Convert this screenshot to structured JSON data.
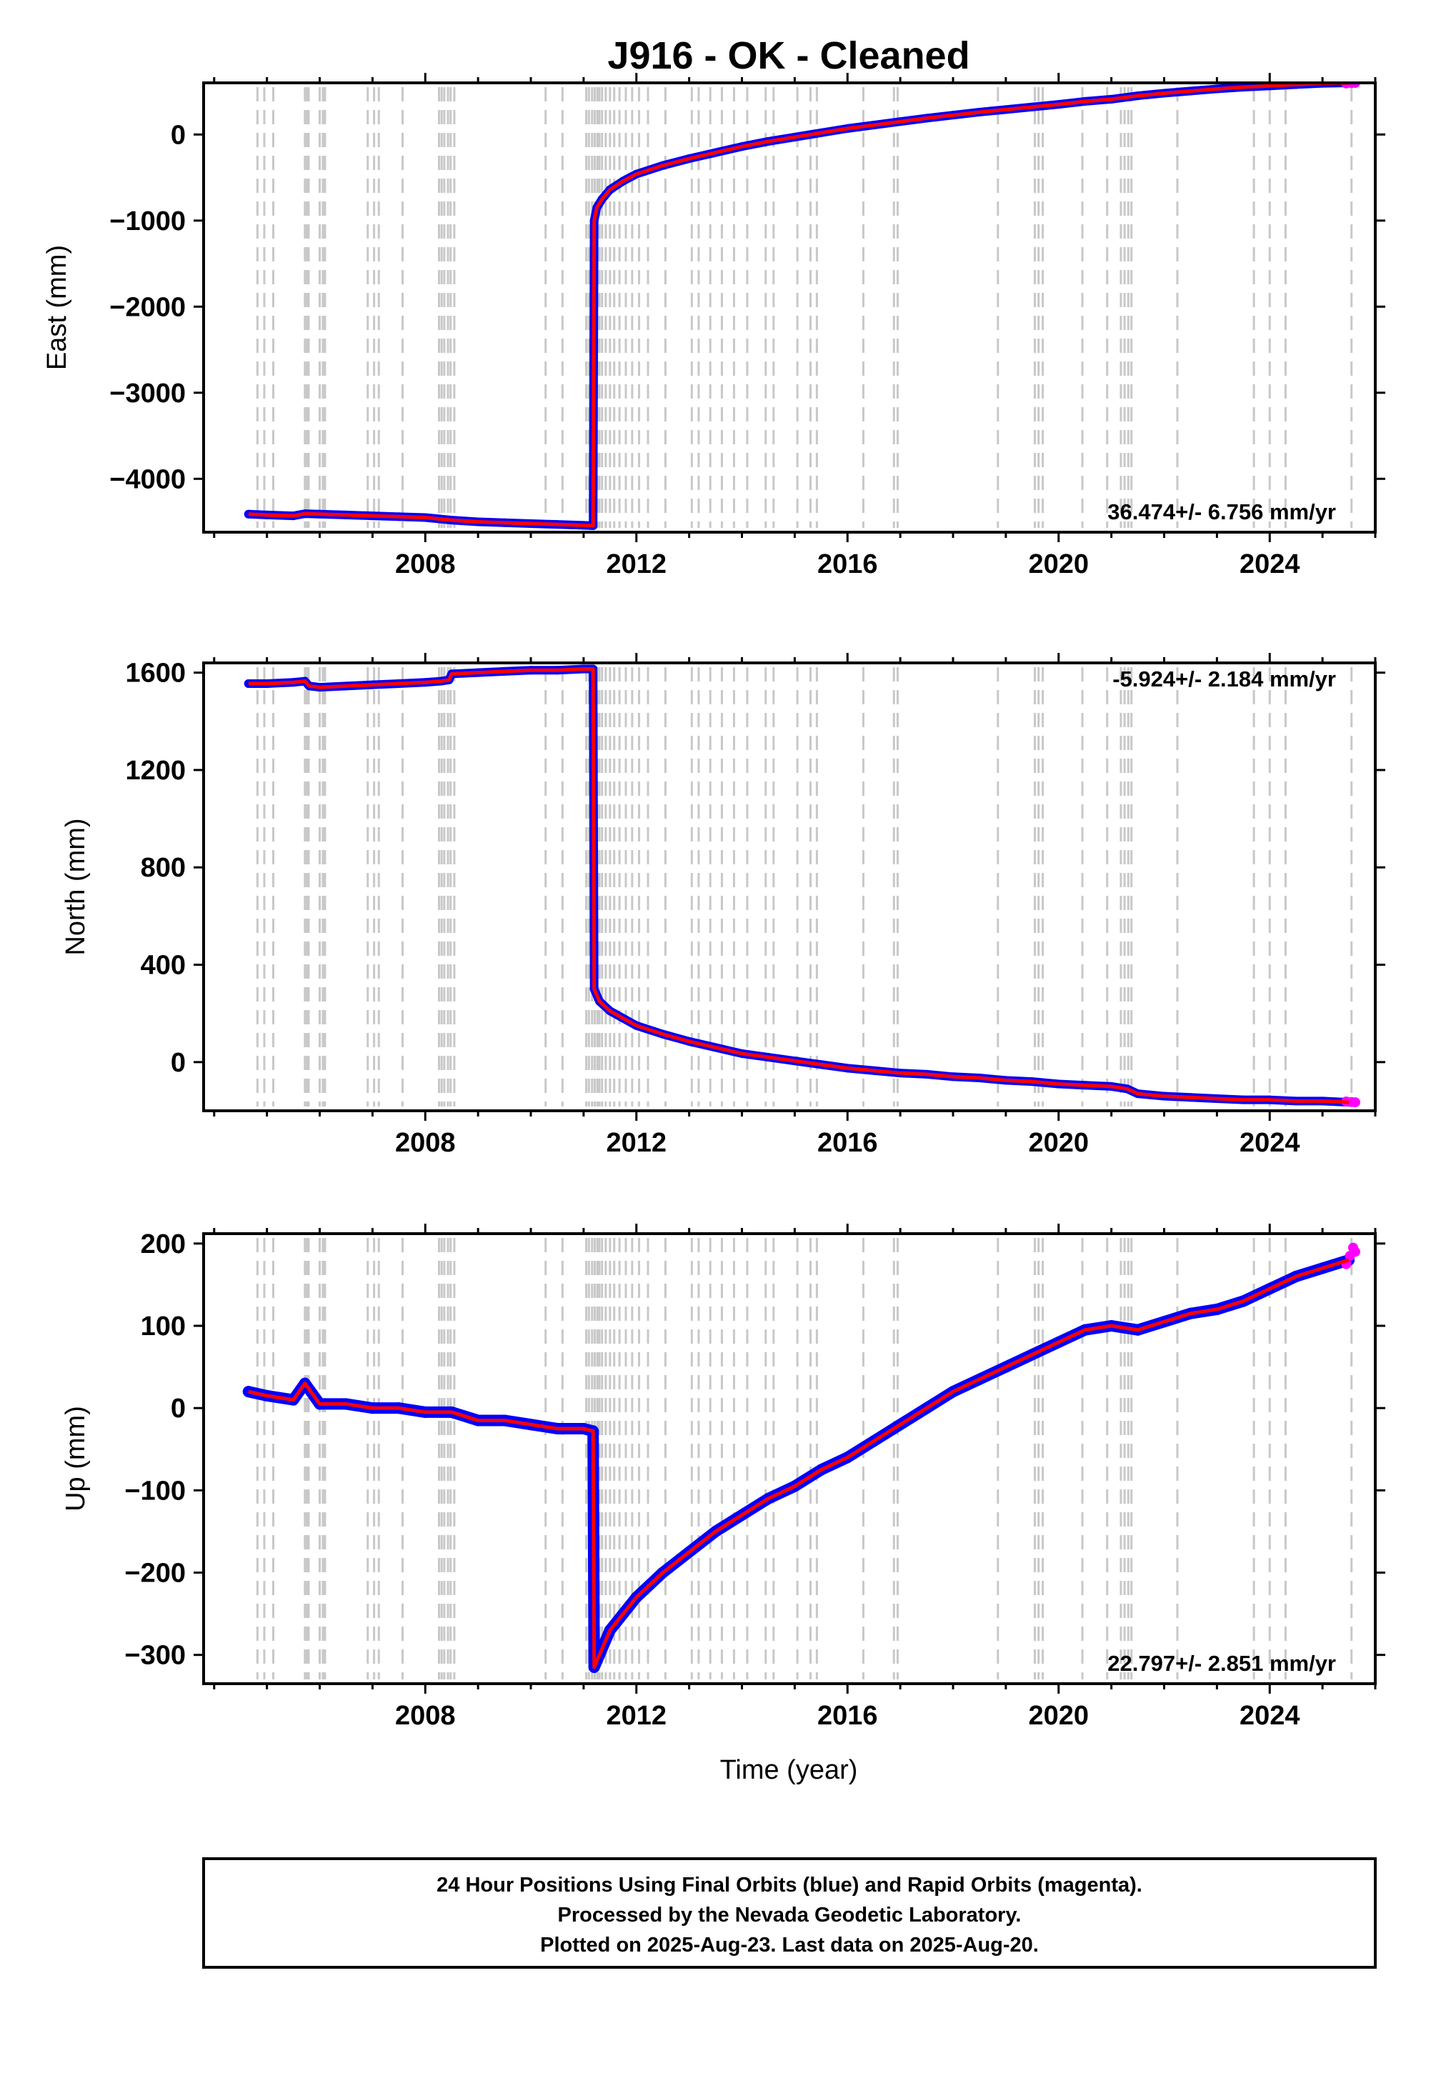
{
  "title": "J916  - OK - Cleaned",
  "colors": {
    "final": "#0000ff",
    "rapid": "#ff00ff",
    "model": "#ff0000",
    "event_lines": "#c8c8c8",
    "frame": "#000000"
  },
  "event_lines": [
    2004.82,
    2004.95,
    2005.12,
    2005.72,
    2005.76,
    2005.79,
    2006.0,
    2006.06,
    2006.1,
    2006.91,
    2007.03,
    2007.12,
    2007.57,
    2008.26,
    2008.31,
    2008.36,
    2008.43,
    2008.48,
    2008.55,
    2010.28,
    2010.6,
    2011.05,
    2011.1,
    2011.16,
    2011.21,
    2011.26,
    2011.3,
    2011.35,
    2011.42,
    2011.5,
    2011.58,
    2011.68,
    2011.8,
    2011.92,
    2012.05,
    2012.22,
    2012.55,
    2013.05,
    2013.18,
    2013.4,
    2013.62,
    2013.85,
    2014.1,
    2014.45,
    2014.6,
    2015.05,
    2015.3,
    2015.42,
    2016.3,
    2016.88,
    2016.95,
    2018.85,
    2019.55,
    2019.62,
    2019.7,
    2020.45,
    2020.92,
    2021.18,
    2021.25,
    2021.32,
    2021.38,
    2022.25,
    2023.7,
    2024.0,
    2024.3,
    2025.55
  ],
  "chart_data": [
    {
      "type": "scatter",
      "title": "J916  - OK - Cleaned",
      "xlabel": "",
      "ylabel": "East (mm)",
      "xlim": [
        2003.8,
        2026.0
      ],
      "ylim": [
        -4620,
        600
      ],
      "xticks": [
        2008,
        2012,
        2016,
        2020,
        2024
      ],
      "yticks": [
        -4000,
        -3000,
        -2000,
        -1000,
        0
      ],
      "grid": false,
      "rate_label": "36.474+/- 6.756 mm/yr",
      "rate_position": "bottom-right",
      "series": [
        {
          "name": "Final Orbits",
          "x": [
            2004.65,
            2005.0,
            2005.5,
            2005.72,
            2006.0,
            2006.5,
            2007.0,
            2007.5,
            2008.0,
            2008.5,
            2009.0,
            2009.5,
            2010.0,
            2010.5,
            2011.0,
            2011.18,
            2011.2,
            2011.25,
            2011.35,
            2011.5,
            2011.75,
            2012.0,
            2012.5,
            2013.0,
            2013.5,
            2014.0,
            2014.5,
            2015.0,
            2015.5,
            2016.0,
            2016.5,
            2017.0,
            2017.5,
            2018.0,
            2018.5,
            2019.0,
            2019.5,
            2020.0,
            2020.5,
            2021.0,
            2021.5,
            2022.0,
            2022.5,
            2023.0,
            2023.5,
            2024.0,
            2024.5,
            2025.0,
            2025.5
          ],
          "values": [
            -4410,
            -4420,
            -4430,
            -4405,
            -4410,
            -4420,
            -4430,
            -4440,
            -4450,
            -4480,
            -4500,
            -4510,
            -4520,
            -4530,
            -4540,
            -4545,
            -1000,
            -850,
            -750,
            -640,
            -540,
            -460,
            -360,
            -280,
            -210,
            -140,
            -80,
            -30,
            20,
            70,
            110,
            150,
            190,
            225,
            260,
            290,
            320,
            350,
            385,
            410,
            450,
            480,
            505,
            530,
            550,
            565,
            580,
            595,
            600
          ]
        },
        {
          "name": "Rapid Orbits",
          "x": [
            2025.45,
            2025.55,
            2025.62
          ],
          "values": [
            593,
            597,
            600
          ]
        },
        {
          "name": "Model",
          "x": [
            2004.65,
            2005.0,
            2005.5,
            2005.72,
            2006.0,
            2006.5,
            2007.0,
            2007.5,
            2008.0,
            2008.5,
            2009.0,
            2009.5,
            2010.0,
            2010.5,
            2011.0,
            2011.18,
            2011.2,
            2011.25,
            2011.35,
            2011.5,
            2011.75,
            2012.0,
            2012.5,
            2013.0,
            2013.5,
            2014.0,
            2014.5,
            2015.0,
            2015.5,
            2016.0,
            2016.5,
            2017.0,
            2017.5,
            2018.0,
            2018.5,
            2019.0,
            2019.5,
            2020.0,
            2020.5,
            2021.0,
            2021.5,
            2022.0,
            2022.5,
            2023.0,
            2023.5,
            2024.0,
            2024.5,
            2025.0,
            2025.5
          ],
          "values": [
            -4410,
            -4420,
            -4430,
            -4405,
            -4410,
            -4420,
            -4430,
            -4440,
            -4450,
            -4480,
            -4500,
            -4510,
            -4520,
            -4530,
            -4540,
            -4545,
            -1000,
            -850,
            -750,
            -640,
            -540,
            -460,
            -360,
            -280,
            -210,
            -140,
            -80,
            -30,
            20,
            70,
            110,
            150,
            190,
            225,
            260,
            290,
            320,
            350,
            385,
            410,
            450,
            480,
            505,
            530,
            550,
            565,
            580,
            595,
            600
          ]
        }
      ]
    },
    {
      "type": "scatter",
      "title": "",
      "xlabel": "",
      "ylabel": "North (mm)",
      "xlim": [
        2003.8,
        2026.0
      ],
      "ylim": [
        -200,
        1640
      ],
      "xticks": [
        2008,
        2012,
        2016,
        2020,
        2024
      ],
      "yticks": [
        0,
        400,
        800,
        1200,
        1600
      ],
      "grid": false,
      "rate_label": "-5.924+/- 2.184 mm/yr",
      "rate_position": "top-right",
      "series": [
        {
          "name": "Final Orbits",
          "x": [
            2004.65,
            2005.0,
            2005.5,
            2005.72,
            2005.8,
            2006.0,
            2006.5,
            2007.0,
            2007.5,
            2008.0,
            2008.3,
            2008.45,
            2008.5,
            2009.0,
            2009.5,
            2010.0,
            2010.5,
            2011.0,
            2011.18,
            2011.2,
            2011.3,
            2011.5,
            2011.75,
            2012.0,
            2012.5,
            2013.0,
            2013.5,
            2014.0,
            2014.5,
            2015.0,
            2015.5,
            2016.0,
            2016.5,
            2017.0,
            2017.5,
            2018.0,
            2018.5,
            2019.0,
            2019.5,
            2020.0,
            2020.5,
            2021.0,
            2021.3,
            2021.5,
            2022.0,
            2022.5,
            2023.0,
            2023.5,
            2024.0,
            2024.5,
            2025.0,
            2025.5
          ],
          "values": [
            1555,
            1555,
            1560,
            1565,
            1545,
            1540,
            1545,
            1550,
            1555,
            1560,
            1565,
            1570,
            1595,
            1600,
            1605,
            1610,
            1610,
            1615,
            1615,
            300,
            250,
            210,
            180,
            150,
            115,
            85,
            60,
            35,
            20,
            5,
            -10,
            -25,
            -35,
            -45,
            -50,
            -60,
            -65,
            -75,
            -80,
            -90,
            -95,
            -100,
            -110,
            -130,
            -140,
            -145,
            -150,
            -155,
            -155,
            -160,
            -160,
            -165
          ]
        },
        {
          "name": "Rapid Orbits",
          "x": [
            2025.45,
            2025.55,
            2025.62
          ],
          "values": [
            -162,
            -164,
            -165
          ]
        },
        {
          "name": "Model",
          "x": [
            2004.65,
            2005.0,
            2005.5,
            2005.72,
            2005.8,
            2006.0,
            2006.5,
            2007.0,
            2007.5,
            2008.0,
            2008.3,
            2008.45,
            2008.5,
            2009.0,
            2009.5,
            2010.0,
            2010.5,
            2011.0,
            2011.18,
            2011.2,
            2011.3,
            2011.5,
            2011.75,
            2012.0,
            2012.5,
            2013.0,
            2013.5,
            2014.0,
            2014.5,
            2015.0,
            2015.5,
            2016.0,
            2016.5,
            2017.0,
            2017.5,
            2018.0,
            2018.5,
            2019.0,
            2019.5,
            2020.0,
            2020.5,
            2021.0,
            2021.3,
            2021.5,
            2022.0,
            2022.5,
            2023.0,
            2023.5,
            2024.0,
            2024.5,
            2025.0,
            2025.5
          ],
          "values": [
            1555,
            1555,
            1560,
            1565,
            1545,
            1540,
            1545,
            1550,
            1555,
            1560,
            1565,
            1570,
            1595,
            1600,
            1605,
            1610,
            1610,
            1615,
            1615,
            300,
            250,
            210,
            180,
            150,
            115,
            85,
            60,
            35,
            20,
            5,
            -10,
            -25,
            -35,
            -45,
            -50,
            -60,
            -65,
            -75,
            -80,
            -90,
            -95,
            -100,
            -110,
            -130,
            -140,
            -145,
            -150,
            -155,
            -155,
            -160,
            -160,
            -165
          ]
        }
      ]
    },
    {
      "type": "scatter",
      "title": "",
      "xlabel": "Time (year)",
      "ylabel": "Up (mm)",
      "xlim": [
        2003.8,
        2026.0
      ],
      "ylim": [
        -335,
        212
      ],
      "xticks": [
        2008,
        2012,
        2016,
        2020,
        2024
      ],
      "yticks": [
        -300,
        -200,
        -100,
        0,
        100,
        200
      ],
      "grid": false,
      "rate_label": "22.797+/- 2.851 mm/yr",
      "rate_position": "bottom-right",
      "series": [
        {
          "name": "Final Orbits",
          "x": [
            2004.65,
            2005.0,
            2005.5,
            2005.72,
            2006.0,
            2006.5,
            2007.0,
            2007.5,
            2008.0,
            2008.5,
            2009.0,
            2009.5,
            2010.0,
            2010.5,
            2011.0,
            2011.18,
            2011.2,
            2011.3,
            2011.5,
            2012.0,
            2012.5,
            2013.0,
            2013.5,
            2014.0,
            2014.5,
            2015.0,
            2015.5,
            2016.0,
            2016.5,
            2017.0,
            2017.5,
            2018.0,
            2018.5,
            2019.0,
            2019.5,
            2020.0,
            2020.5,
            2021.0,
            2021.5,
            2022.0,
            2022.5,
            2023.0,
            2023.5,
            2024.0,
            2024.5,
            2025.0,
            2025.5
          ],
          "values": [
            20,
            15,
            10,
            30,
            5,
            5,
            0,
            0,
            -5,
            -5,
            -15,
            -15,
            -20,
            -25,
            -25,
            -28,
            -315,
            -300,
            -270,
            -230,
            -200,
            -175,
            -150,
            -130,
            -110,
            -95,
            -75,
            -60,
            -40,
            -20,
            0,
            20,
            35,
            50,
            65,
            80,
            95,
            100,
            95,
            105,
            115,
            120,
            130,
            145,
            160,
            170,
            180
          ]
        },
        {
          "name": "Rapid Orbits",
          "x": [
            2025.45,
            2025.52,
            2025.58,
            2025.62
          ],
          "values": [
            175,
            185,
            195,
            190
          ]
        },
        {
          "name": "Model",
          "x": [
            2004.65,
            2005.0,
            2005.5,
            2005.72,
            2006.0,
            2006.5,
            2007.0,
            2007.5,
            2008.0,
            2008.5,
            2009.0,
            2009.5,
            2010.0,
            2010.5,
            2011.0,
            2011.18,
            2011.2,
            2011.3,
            2011.5,
            2012.0,
            2012.5,
            2013.0,
            2013.5,
            2014.0,
            2014.5,
            2015.0,
            2015.5,
            2016.0,
            2016.5,
            2017.0,
            2017.5,
            2018.0,
            2018.5,
            2019.0,
            2019.5,
            2020.0,
            2020.5,
            2021.0,
            2021.5,
            2022.0,
            2022.5,
            2023.0,
            2023.5,
            2024.0,
            2024.5,
            2025.0,
            2025.5
          ],
          "values": [
            20,
            15,
            10,
            30,
            5,
            5,
            0,
            0,
            -5,
            -5,
            -15,
            -15,
            -20,
            -25,
            -25,
            -28,
            -315,
            -300,
            -270,
            -230,
            -200,
            -175,
            -150,
            -130,
            -110,
            -95,
            -75,
            -60,
            -40,
            -20,
            0,
            20,
            35,
            50,
            65,
            80,
            95,
            100,
            95,
            105,
            115,
            120,
            130,
            145,
            160,
            170,
            180
          ]
        }
      ]
    }
  ],
  "footer": {
    "line1": "24 Hour Positions Using Final Orbits (blue) and Rapid Orbits (magenta).",
    "line2": "Processed by the Nevada Geodetic Laboratory.",
    "line3": "Plotted on 2025-Aug-23. Last data on 2025-Aug-20."
  }
}
